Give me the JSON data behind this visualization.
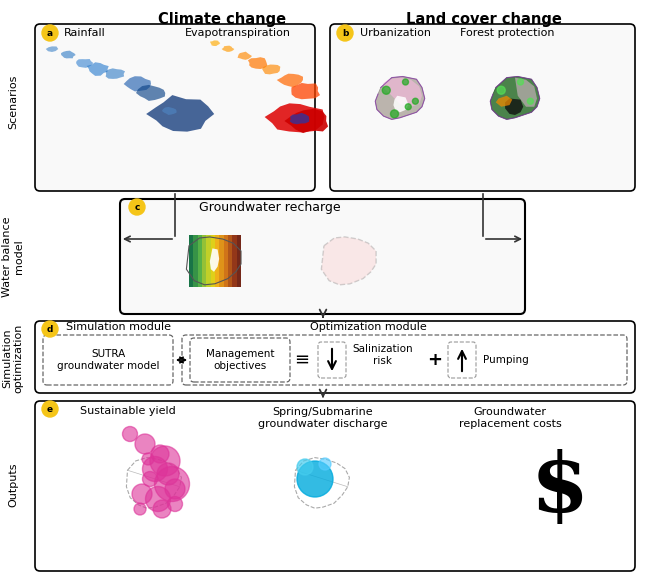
{
  "bg_color": "#ffffff",
  "col_headers": [
    "Climate change",
    "Land cover change"
  ],
  "section_labels": [
    "Scenarios",
    "Water balance\nmodel",
    "Simulation\noptimization",
    "Outputs"
  ],
  "panel_labels": [
    "a",
    "b",
    "c",
    "d",
    "e"
  ],
  "panel_circle_color": "#f5c518",
  "rainfall_label": "Rainfall",
  "evapotransp_label": "Evapotranspiration",
  "urbanization_label": "Urbanization",
  "forest_label": "Forest protection",
  "groundwater_recharge_label": "Groundwater recharge",
  "sim_module_label": "Simulation module",
  "opt_module_label": "Optimization module",
  "sutra_label": "SUTRA\ngroundwater model",
  "mgmt_label": "Management\nobjectives",
  "salin_label": "Salinization\nrisk",
  "pumping_label": "Pumping",
  "sustainable_yield_label": "Sustainable yield",
  "spring_label": "Spring/Submarine\ngroundwater discharge",
  "gw_replacement_label": "Groundwater\nreplacement costs",
  "dollar_label": "$",
  "arrow_color": "#333333"
}
